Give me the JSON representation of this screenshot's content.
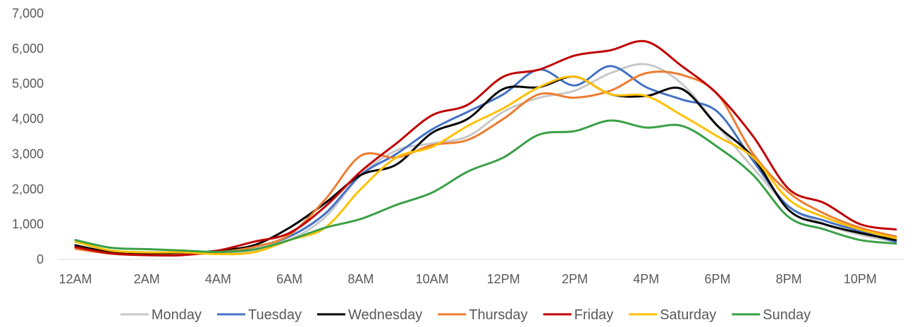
{
  "chart_data": {
    "type": "line",
    "title": "",
    "xlabel": "",
    "ylabel": "",
    "ylim": [
      0,
      7000
    ],
    "y_ticks": [
      "0",
      "1,000",
      "2,000",
      "3,000",
      "4,000",
      "5,000",
      "6,000",
      "7,000"
    ],
    "y_tick_values": [
      0,
      1000,
      2000,
      3000,
      4000,
      5000,
      6000,
      7000
    ],
    "x": [
      0,
      1,
      2,
      3,
      4,
      5,
      6,
      7,
      8,
      9,
      10,
      11,
      12,
      13,
      14,
      15,
      16,
      17,
      18,
      19,
      20,
      21,
      22,
      23
    ],
    "x_tick_positions": [
      0,
      2,
      4,
      6,
      8,
      10,
      12,
      14,
      16,
      18,
      20,
      22
    ],
    "x_ticks": [
      "12AM",
      "2AM",
      "4AM",
      "6AM",
      "8AM",
      "10AM",
      "12PM",
      "2PM",
      "4PM",
      "6PM",
      "8PM",
      "10PM"
    ],
    "legend_position": "bottom",
    "grid": false,
    "series": [
      {
        "name": "Monday",
        "color": "#c8c8c8",
        "values": [
          400,
          200,
          120,
          130,
          180,
          250,
          550,
          1200,
          2400,
          3100,
          3300,
          3500,
          4200,
          4600,
          4800,
          5300,
          5550,
          5000,
          3800,
          2600,
          1500,
          1000,
          700,
          500
        ]
      },
      {
        "name": "Tuesday",
        "color": "#4472c4",
        "values": [
          350,
          170,
          140,
          150,
          200,
          350,
          650,
          1300,
          2400,
          3000,
          3700,
          4200,
          4700,
          5400,
          4950,
          5500,
          4900,
          4550,
          4200,
          2800,
          1500,
          1100,
          800,
          500
        ]
      },
      {
        "name": "Wednesday",
        "color": "#000000",
        "values": [
          400,
          200,
          150,
          150,
          250,
          400,
          900,
          1600,
          2400,
          2700,
          3600,
          4000,
          4850,
          4900,
          5200,
          4700,
          4650,
          4850,
          3800,
          2900,
          1400,
          1000,
          750,
          550
        ]
      },
      {
        "name": "Thursday",
        "color": "#ed7d31",
        "values": [
          300,
          160,
          120,
          130,
          200,
          350,
          700,
          1700,
          2950,
          2900,
          3250,
          3400,
          4000,
          4700,
          4600,
          4800,
          5300,
          5250,
          4700,
          3000,
          1900,
          1300,
          900,
          650
        ]
      },
      {
        "name": "Friday",
        "color": "#c00000",
        "values": [
          350,
          170,
          120,
          120,
          250,
          500,
          750,
          1500,
          2500,
          3300,
          4100,
          4400,
          5200,
          5400,
          5800,
          5950,
          6200,
          5500,
          4700,
          3500,
          2000,
          1600,
          1000,
          850
        ]
      },
      {
        "name": "Saturday",
        "color": "#ffc000",
        "values": [
          500,
          250,
          200,
          200,
          150,
          200,
          550,
          900,
          2000,
          2900,
          3200,
          3800,
          4300,
          4900,
          5200,
          4700,
          4650,
          4100,
          3500,
          2900,
          1700,
          1200,
          850,
          600
        ]
      },
      {
        "name": "Sunday",
        "color": "#3aa046",
        "values": [
          550,
          330,
          290,
          250,
          210,
          280,
          550,
          900,
          1150,
          1550,
          1900,
          2500,
          2900,
          3550,
          3650,
          3950,
          3750,
          3800,
          3200,
          2400,
          1200,
          850,
          550,
          450
        ]
      }
    ]
  }
}
